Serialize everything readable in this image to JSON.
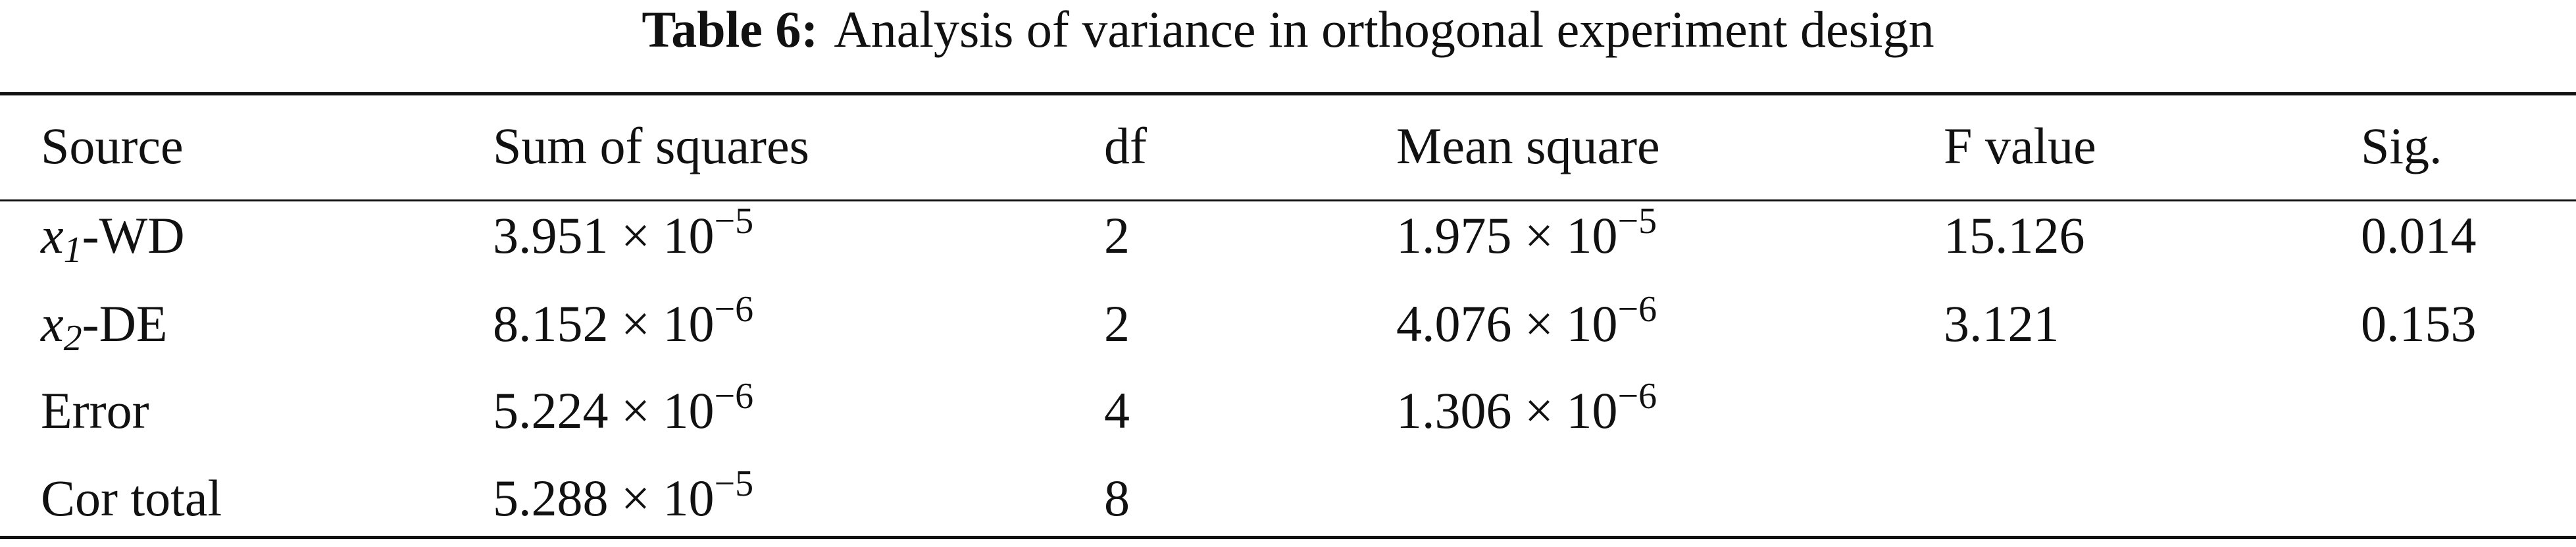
{
  "table": {
    "caption": {
      "label": "Table 6:",
      "text": "Analysis of variance in orthogonal experiment design"
    },
    "header": [
      "Source",
      "Sum of squares",
      "df",
      "Mean square",
      "F value",
      "Sig."
    ],
    "rows": [
      [
        {
          "var": "x",
          "sub": "1",
          "rest": "-WD"
        },
        {
          "base": "3.951 × 10",
          "exp": "−5"
        },
        "2",
        {
          "base": "1.975 × 10",
          "exp": "−5"
        },
        "15.126",
        "0.014"
      ],
      [
        {
          "var": "x",
          "sub": "2",
          "rest": "-DE"
        },
        {
          "base": "8.152 × 10",
          "exp": "−6"
        },
        "2",
        {
          "base": "4.076 × 10",
          "exp": "−6"
        },
        "3.121",
        "0.153"
      ],
      [
        "Error",
        {
          "base": "5.224 × 10",
          "exp": "−6"
        },
        "4",
        {
          "base": "1.306 × 10",
          "exp": "−6"
        }
      ],
      [
        "Cor total",
        {
          "base": "5.288 × 10",
          "exp": "−5"
        },
        "8"
      ]
    ]
  }
}
